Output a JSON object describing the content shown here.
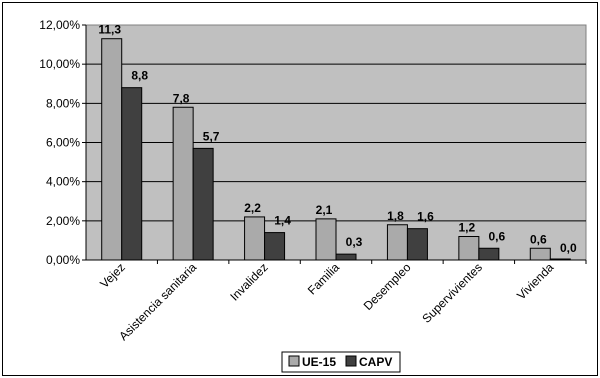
{
  "chart_data": {
    "type": "bar",
    "categories": [
      "Vejez",
      "Asistencia sanitaria",
      "Invalidez",
      "Familia",
      "Desempleo",
      "Supervivientes",
      "Vivienda"
    ],
    "series": [
      {
        "name": "UE-15",
        "values": [
          11.3,
          7.8,
          2.2,
          2.1,
          1.8,
          1.2,
          0.6
        ],
        "labels": [
          "11,3",
          "7,8",
          "2,2",
          "2,1",
          "1,8",
          "1,2",
          "0,6"
        ],
        "color": "#aaaaaa"
      },
      {
        "name": "CAPV",
        "values": [
          8.8,
          5.7,
          1.4,
          0.3,
          1.6,
          0.6,
          0.0
        ],
        "labels": [
          "8,8",
          "5,7",
          "1,4",
          "0,3",
          "1,6",
          "0,6",
          "0,0"
        ],
        "color": "#404040"
      }
    ],
    "yticks": [
      "0,00%",
      "2,00%",
      "4,00%",
      "6,00%",
      "8,00%",
      "10,00%",
      "12,00%"
    ],
    "ylim": [
      0,
      12
    ],
    "grid": true,
    "plot_background": "#c0c0c0",
    "legend_position": "bottom-center",
    "title": "",
    "xlabel": "",
    "ylabel": ""
  }
}
